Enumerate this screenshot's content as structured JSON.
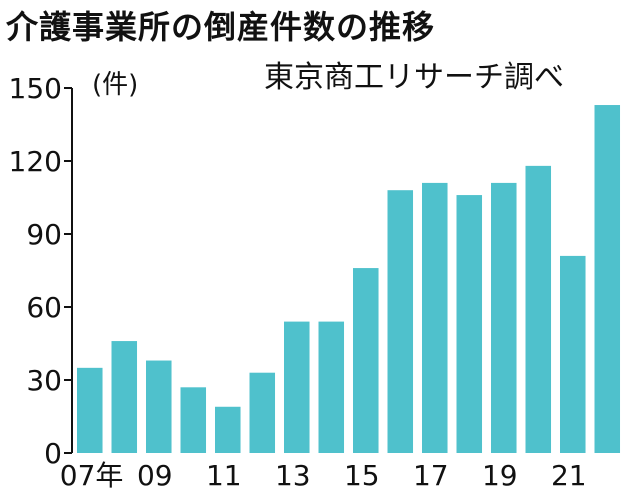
{
  "chart_data": {
    "type": "bar",
    "title": "介護事業所の倒産件数の推移",
    "source": "東京商工リサーチ調べ",
    "unit": "(件)",
    "ylim": [
      0,
      150
    ],
    "yticks": [
      0,
      30,
      60,
      90,
      120,
      150
    ],
    "x_tick_labels": [
      "07年",
      "09",
      "11",
      "13",
      "15",
      "17",
      "19",
      "21"
    ],
    "categories": [
      "07",
      "08",
      "09",
      "10",
      "11",
      "12",
      "13",
      "14",
      "15",
      "16",
      "17",
      "18",
      "19",
      "20",
      "21",
      "22"
    ],
    "values": [
      35,
      46,
      38,
      27,
      19,
      33,
      54,
      54,
      76,
      108,
      111,
      106,
      111,
      118,
      81,
      143
    ],
    "bar_color": "#4fc1cc",
    "grid": false
  }
}
